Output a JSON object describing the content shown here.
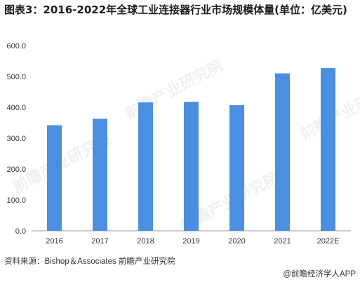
{
  "title": "图表3：2016-2022年全球工业连接器行业市场规模体量(单位：亿美元)",
  "source": "资料来源：Bishop＆Associates 前瞻产业研究院",
  "brand": "@前瞻经济学人APP",
  "watermark": "前瞻产业研究院",
  "colors": {
    "bar": "#4a8fe0",
    "axis": "#999999",
    "text": "#333333"
  },
  "chart_data": {
    "type": "bar",
    "title": "图表3：2016-2022年全球工业连接器行业市场规模体量(单位：亿美元)",
    "categories": [
      "2016",
      "2017",
      "2018",
      "2019",
      "2020",
      "2021",
      "2022E"
    ],
    "values": [
      342,
      363,
      416,
      418,
      407,
      510,
      527
    ],
    "ylim": [
      0,
      600
    ],
    "yticks": [
      "0.0",
      "100.0",
      "200.0",
      "300.0",
      "400.0",
      "500.0",
      "600.0"
    ],
    "grid": false
  }
}
